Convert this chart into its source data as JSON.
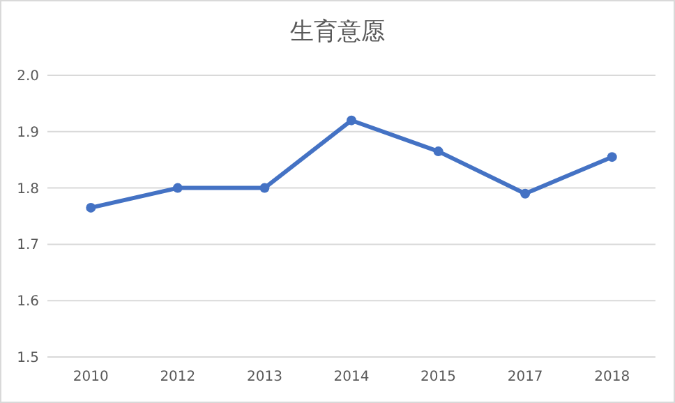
{
  "chart_data": {
    "type": "line",
    "title": "生育意愿",
    "categories": [
      "2010",
      "2012",
      "2013",
      "2014",
      "2015",
      "2017",
      "2018"
    ],
    "series": [
      {
        "color": "#4472c4",
        "values": [
          1.765,
          1.8,
          1.8,
          1.92,
          1.865,
          1.79,
          1.855
        ]
      }
    ],
    "ylim": [
      1.5,
      2.0
    ],
    "yticks": [
      {
        "value": 1.5,
        "label": "1.5"
      },
      {
        "value": 1.6,
        "label": "1.6"
      },
      {
        "value": 1.7,
        "label": "1.7"
      },
      {
        "value": 1.8,
        "label": "1.8"
      },
      {
        "value": 1.9,
        "label": "1.9"
      },
      {
        "value": 2.0,
        "label": "2.0"
      }
    ],
    "grid": "y",
    "marker": "circle",
    "line_style": "solid"
  }
}
